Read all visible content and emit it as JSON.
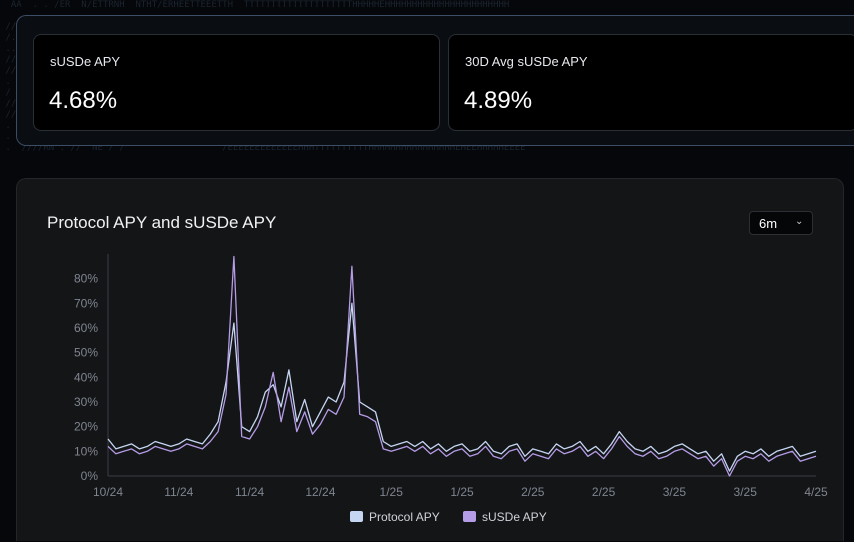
{
  "stats": [
    {
      "label": "sUSDe APY",
      "value": "4.68%"
    },
    {
      "label": "30D Avg sUSDe APY",
      "value": "4.89%"
    }
  ],
  "chart_panel": {
    "range_selector": "6m"
  },
  "colors": {
    "protocol_apy": "#c5d6f2",
    "susde_apy": "#b59ce6",
    "background": "#141517"
  },
  "icons": {
    "dropdown": "chevron-down-icon"
  },
  "chart_data": {
    "type": "line",
    "title": "Protocol APY and sUSDe APY",
    "xlabel": "",
    "ylabel": "",
    "ylim": [
      0,
      90
    ],
    "yticks": [
      "0%",
      "10%",
      "20%",
      "30%",
      "40%",
      "50%",
      "60%",
      "70%",
      "80%"
    ],
    "xticks": [
      "10/24",
      "11/24",
      "11/24",
      "12/24",
      "1/25",
      "1/25",
      "2/25",
      "2/25",
      "3/25",
      "3/25",
      "4/25"
    ],
    "grid": false,
    "legend": "bottom-center",
    "x_unit": "days since start of window",
    "x": [
      0,
      2,
      4,
      6,
      8,
      10,
      12,
      14,
      16,
      18,
      20,
      22,
      24,
      26,
      28,
      30,
      32,
      34,
      36,
      38,
      40,
      42,
      44,
      46,
      48,
      50,
      52,
      54,
      56,
      58,
      60,
      62,
      64,
      66,
      68,
      70,
      72,
      74,
      76,
      78,
      80,
      82,
      84,
      86,
      88,
      90,
      92,
      94,
      96,
      98,
      100,
      102,
      104,
      106,
      108,
      110,
      112,
      114,
      116,
      118,
      120,
      122,
      124,
      126,
      128,
      130,
      132,
      134,
      136,
      138,
      140,
      142,
      144,
      146,
      148,
      150,
      152,
      154,
      156,
      158,
      160,
      162,
      164,
      166,
      168,
      170,
      172,
      174,
      176,
      178,
      180
    ],
    "series": [
      {
        "name": "Protocol APY",
        "values": [
          15,
          11,
          12,
          13,
          11,
          12,
          14,
          13,
          12,
          13,
          15,
          14,
          13,
          17,
          22,
          38,
          62,
          20,
          18,
          24,
          34,
          37,
          28,
          43,
          22,
          31,
          20,
          26,
          32,
          30,
          38,
          70,
          30,
          28,
          26,
          14,
          12,
          13,
          14,
          12,
          14,
          11,
          13,
          10,
          12,
          13,
          10,
          11,
          14,
          10,
          9,
          12,
          13,
          8,
          11,
          10,
          9,
          13,
          11,
          12,
          14,
          10,
          12,
          9,
          13,
          18,
          14,
          11,
          10,
          12,
          9,
          10,
          12,
          13,
          11,
          9,
          10,
          6,
          9,
          2,
          8,
          10,
          9,
          11,
          8,
          10,
          11,
          12,
          8,
          9,
          10
        ]
      },
      {
        "name": "sUSDe APY",
        "values": [
          12,
          9,
          10,
          11,
          9,
          10,
          12,
          11,
          10,
          11,
          13,
          12,
          11,
          14,
          18,
          33,
          89,
          16,
          15,
          20,
          28,
          42,
          22,
          36,
          18,
          26,
          17,
          21,
          27,
          25,
          32,
          85,
          25,
          24,
          22,
          11,
          10,
          11,
          12,
          10,
          12,
          9,
          11,
          8,
          10,
          11,
          8,
          9,
          12,
          8,
          7,
          10,
          11,
          6,
          9,
          8,
          7,
          11,
          9,
          10,
          12,
          8,
          10,
          7,
          11,
          16,
          12,
          9,
          8,
          10,
          7,
          8,
          10,
          11,
          9,
          7,
          8,
          4,
          7,
          0,
          6,
          8,
          7,
          9,
          6,
          8,
          9,
          10,
          6,
          7,
          8
        ]
      }
    ]
  }
}
